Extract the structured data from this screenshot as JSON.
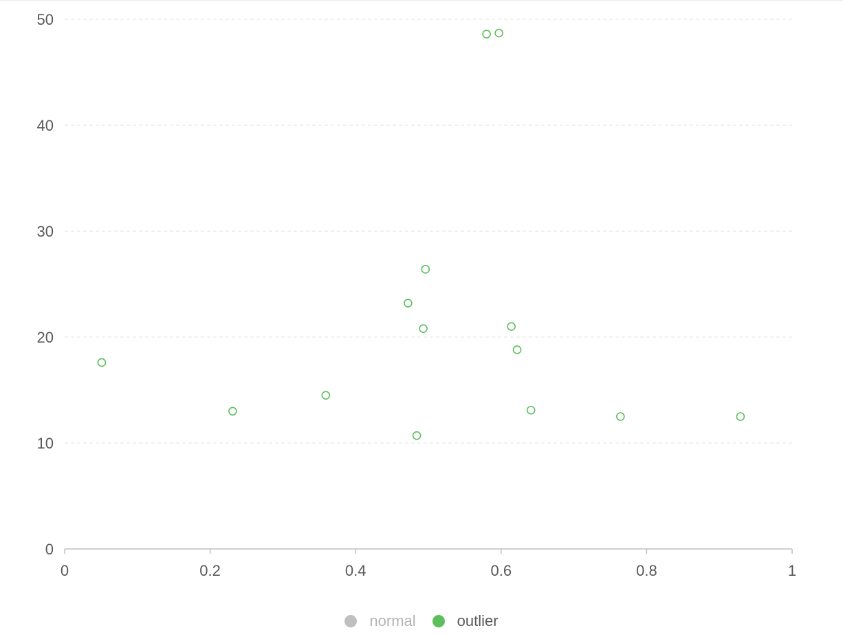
{
  "colors": {
    "outlier": "#5cbf5c",
    "normal_inactive": "#bfbfbf",
    "axis": "#bfbfbf",
    "grid": "#e3e3e3",
    "tick_text": "#595959",
    "legend_text_active": "#595959",
    "legend_text_inactive": "#b3b3b3"
  },
  "legend": [
    {
      "name": "normal",
      "active": false
    },
    {
      "name": "outlier",
      "active": true
    }
  ],
  "chart_data": {
    "type": "scatter",
    "title": "",
    "xlabel": "",
    "ylabel": "",
    "xlim": [
      0,
      1
    ],
    "ylim": [
      0,
      50
    ],
    "x_ticks": [
      0,
      0.2,
      0.4,
      0.6,
      0.8,
      1
    ],
    "x_tick_labels": [
      "0",
      "0.2",
      "0.4",
      "0.6",
      "0.8",
      "1"
    ],
    "y_ticks": [
      0,
      10,
      20,
      30,
      40,
      50
    ],
    "y_tick_labels": [
      "0",
      "10",
      "20",
      "30",
      "40",
      "50"
    ],
    "grid": {
      "horizontal": true,
      "vertical": false,
      "style": "dashed"
    },
    "legend_position": "bottom",
    "series": [
      {
        "name": "normal",
        "visible": false,
        "points": []
      },
      {
        "name": "outlier",
        "visible": true,
        "marker": "hollow-circle",
        "points": [
          {
            "x": 0.051,
            "y": 17.6
          },
          {
            "x": 0.231,
            "y": 13.0
          },
          {
            "x": 0.359,
            "y": 14.5
          },
          {
            "x": 0.472,
            "y": 23.2
          },
          {
            "x": 0.484,
            "y": 10.7
          },
          {
            "x": 0.493,
            "y": 20.8
          },
          {
            "x": 0.496,
            "y": 26.4
          },
          {
            "x": 0.58,
            "y": 48.6
          },
          {
            "x": 0.597,
            "y": 48.7
          },
          {
            "x": 0.614,
            "y": 21.0
          },
          {
            "x": 0.622,
            "y": 18.8
          },
          {
            "x": 0.641,
            "y": 13.1
          },
          {
            "x": 0.764,
            "y": 12.5
          },
          {
            "x": 0.929,
            "y": 12.5
          }
        ]
      }
    ]
  }
}
